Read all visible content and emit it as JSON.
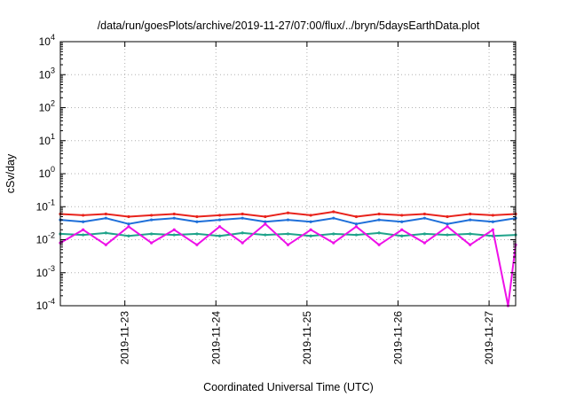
{
  "chart_data": {
    "type": "line",
    "title": "/data/run/goesPlots/archive/2019-11-27/07:00/flux/../bryn/5daysEarthData.plot",
    "xlabel": "Coordinated Universal Time (UTC)",
    "ylabel": "cSv/day",
    "yscale": "log",
    "ylim": [
      0.0001,
      10000
    ],
    "xlim": [
      "2019-11-22 07:00",
      "2019-11-27 07:00"
    ],
    "x_ticks": [
      "2019-11-23",
      "2019-11-24",
      "2019-11-25",
      "2019-11-26",
      "2019-11-27"
    ],
    "y_ticks": [
      {
        "base": "10",
        "exp": "-4"
      },
      {
        "base": "10",
        "exp": "-3"
      },
      {
        "base": "10",
        "exp": "-2"
      },
      {
        "base": "10",
        "exp": "-1"
      },
      {
        "base": "10",
        "exp": "0"
      },
      {
        "base": "10",
        "exp": "1"
      },
      {
        "base": "10",
        "exp": "2"
      },
      {
        "base": "10",
        "exp": "3"
      },
      {
        "base": "10",
        "exp": "4"
      }
    ],
    "grid": true,
    "series": [
      {
        "color": "#e8231c",
        "x": [
          "2019-11-22 07:00",
          "2019-11-22 13:00",
          "2019-11-22 19:00",
          "2019-11-23 01:00",
          "2019-11-23 07:00",
          "2019-11-23 13:00",
          "2019-11-23 19:00",
          "2019-11-24 01:00",
          "2019-11-24 07:00",
          "2019-11-24 13:00",
          "2019-11-24 19:00",
          "2019-11-25 01:00",
          "2019-11-25 07:00",
          "2019-11-25 13:00",
          "2019-11-25 19:00",
          "2019-11-26 01:00",
          "2019-11-26 07:00",
          "2019-11-26 13:00",
          "2019-11-26 19:00",
          "2019-11-27 01:00",
          "2019-11-27 07:00"
        ],
        "values": [
          0.06,
          0.055,
          0.06,
          0.05,
          0.055,
          0.06,
          0.05,
          0.055,
          0.06,
          0.05,
          0.065,
          0.055,
          0.07,
          0.05,
          0.06,
          0.055,
          0.06,
          0.05,
          0.06,
          0.055,
          0.06
        ]
      },
      {
        "color": "#1fa38a",
        "x": [
          "2019-11-22 07:00",
          "2019-11-22 13:00",
          "2019-11-22 19:00",
          "2019-11-23 01:00",
          "2019-11-23 07:00",
          "2019-11-23 13:00",
          "2019-11-23 19:00",
          "2019-11-24 01:00",
          "2019-11-24 07:00",
          "2019-11-24 13:00",
          "2019-11-24 19:00",
          "2019-11-25 01:00",
          "2019-11-25 07:00",
          "2019-11-25 13:00",
          "2019-11-25 19:00",
          "2019-11-26 01:00",
          "2019-11-26 07:00",
          "2019-11-26 13:00",
          "2019-11-26 19:00",
          "2019-11-27 01:00",
          "2019-11-27 07:00"
        ],
        "values": [
          0.015,
          0.014,
          0.016,
          0.013,
          0.015,
          0.014,
          0.015,
          0.013,
          0.016,
          0.014,
          0.015,
          0.013,
          0.015,
          0.014,
          0.016,
          0.013,
          0.015,
          0.014,
          0.015,
          0.013,
          0.014
        ]
      },
      {
        "color": "#1e6fd9",
        "x": [
          "2019-11-22 07:00",
          "2019-11-22 13:00",
          "2019-11-22 19:00",
          "2019-11-23 01:00",
          "2019-11-23 07:00",
          "2019-11-23 13:00",
          "2019-11-23 19:00",
          "2019-11-24 01:00",
          "2019-11-24 07:00",
          "2019-11-24 13:00",
          "2019-11-24 19:00",
          "2019-11-25 01:00",
          "2019-11-25 07:00",
          "2019-11-25 13:00",
          "2019-11-25 19:00",
          "2019-11-26 01:00",
          "2019-11-26 07:00",
          "2019-11-26 13:00",
          "2019-11-26 19:00",
          "2019-11-27 01:00",
          "2019-11-27 07:00"
        ],
        "values": [
          0.04,
          0.035,
          0.045,
          0.03,
          0.04,
          0.045,
          0.035,
          0.04,
          0.045,
          0.035,
          0.04,
          0.035,
          0.045,
          0.03,
          0.04,
          0.035,
          0.045,
          0.03,
          0.04,
          0.035,
          0.045
        ]
      },
      {
        "color": "#ee10e8",
        "x": [
          "2019-11-22 07:00",
          "2019-11-22 13:00",
          "2019-11-22 19:00",
          "2019-11-23 01:00",
          "2019-11-23 07:00",
          "2019-11-23 13:00",
          "2019-11-23 19:00",
          "2019-11-24 01:00",
          "2019-11-24 07:00",
          "2019-11-24 13:00",
          "2019-11-24 19:00",
          "2019-11-25 01:00",
          "2019-11-25 07:00",
          "2019-11-25 13:00",
          "2019-11-25 19:00",
          "2019-11-26 01:00",
          "2019-11-26 07:00",
          "2019-11-26 13:00",
          "2019-11-26 19:00",
          "2019-11-27 01:00",
          "2019-11-27 05:00",
          "2019-11-27 07:00"
        ],
        "values": [
          0.008,
          0.02,
          0.007,
          0.025,
          0.008,
          0.02,
          0.007,
          0.025,
          0.008,
          0.03,
          0.007,
          0.02,
          0.008,
          0.025,
          0.007,
          0.02,
          0.008,
          0.025,
          0.007,
          0.02,
          0.0001,
          0.007
        ]
      }
    ]
  }
}
